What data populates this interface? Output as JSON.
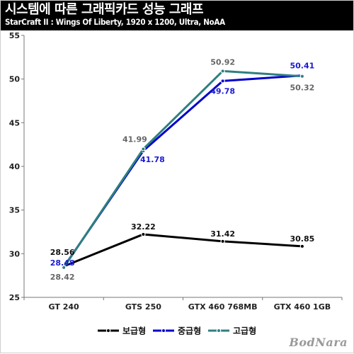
{
  "header": {
    "title": "시스템에 따른 그래픽카드 성능 그래프",
    "subtitle": "StarCraft II : Wings Of Liberty, 1920 x 1200, Ultra, NoAA"
  },
  "chart_data": {
    "type": "line",
    "categories": [
      "GT 240",
      "GTS 250",
      "GTX 460 768MB",
      "GTX 460 1GB"
    ],
    "series": [
      {
        "name": "보급형",
        "values": [
          28.56,
          32.22,
          31.42,
          30.85
        ],
        "color": "#000000"
      },
      {
        "name": "중급형",
        "values": [
          28.48,
          41.78,
          49.78,
          50.41
        ],
        "color": "#0000cc"
      },
      {
        "name": "고급형",
        "values": [
          28.42,
          41.99,
          50.92,
          50.32
        ],
        "color": "#2f7f7f"
      }
    ],
    "ylim": [
      25,
      55
    ],
    "yticks": [
      "25",
      "30",
      "35",
      "40",
      "45",
      "50",
      "55"
    ],
    "grid": false,
    "legend_position": "bottom",
    "data_labels": [
      {
        "series": 0,
        "index": 0,
        "text": "28.56",
        "color": "#111111"
      },
      {
        "series": 0,
        "index": 1,
        "text": "32.22",
        "color": "#111111"
      },
      {
        "series": 0,
        "index": 2,
        "text": "31.42",
        "color": "#111111"
      },
      {
        "series": 0,
        "index": 3,
        "text": "30.85",
        "color": "#111111"
      },
      {
        "series": 1,
        "index": 0,
        "text": "28.48",
        "color": "#1a1ad6"
      },
      {
        "series": 1,
        "index": 1,
        "text": "41.78",
        "color": "#1a1ad6"
      },
      {
        "series": 1,
        "index": 2,
        "text": "49.78",
        "color": "#1a1ad6"
      },
      {
        "series": 1,
        "index": 3,
        "text": "50.41",
        "color": "#1a1ad6"
      },
      {
        "series": 2,
        "index": 0,
        "text": "28.42",
        "color": "#666666"
      },
      {
        "series": 2,
        "index": 1,
        "text": "41.99",
        "color": "#666666"
      },
      {
        "series": 2,
        "index": 2,
        "text": "50.92",
        "color": "#666666"
      },
      {
        "series": 2,
        "index": 3,
        "text": "50.32",
        "color": "#666666"
      }
    ]
  },
  "watermark": "BodNara"
}
